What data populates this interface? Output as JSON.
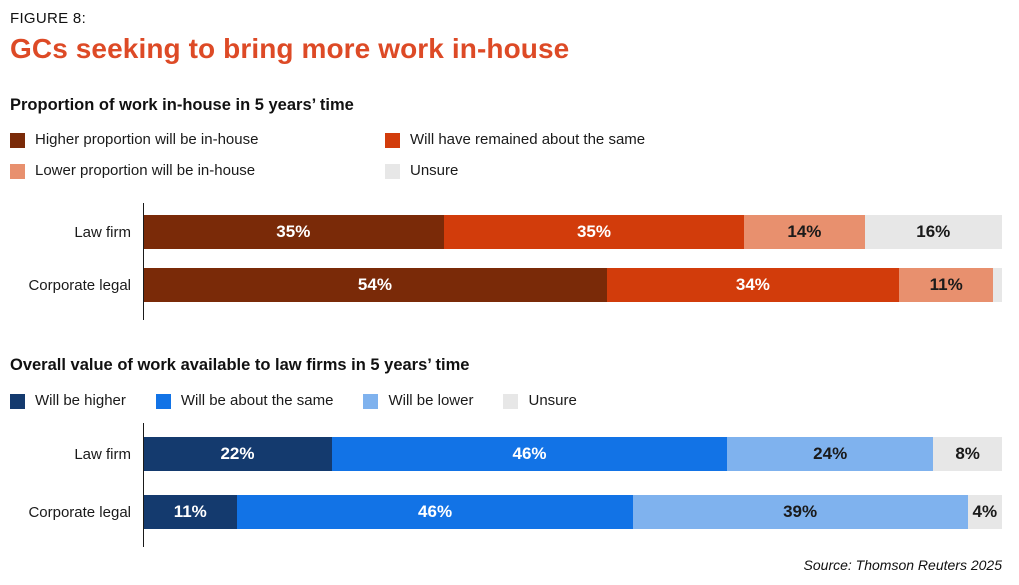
{
  "figure": {
    "label": "FIGURE 8:",
    "title": "GCs seeking to bring more work in-house",
    "source": "Source: Thomson Reuters 2025"
  },
  "colors": {
    "title": "#DD4A26",
    "text": "#1A1A1A",
    "axis": "#1A1A1A"
  },
  "chart_data": [
    {
      "type": "bar",
      "stacked": true,
      "orientation": "horizontal",
      "title": "Proportion of work in-house in 5 years’ time",
      "legend_layout": "grid-2col",
      "legend_position": "top",
      "grid": false,
      "xlim": [
        0,
        100
      ],
      "legend": [
        {
          "label": "Higher proportion will be in-house",
          "color": "#7A2A08"
        },
        {
          "label": "Will have remained about the same",
          "color": "#D23C0B"
        },
        {
          "label": "Lower proportion will be in-house",
          "color": "#E8906E"
        },
        {
          "label": "Unsure",
          "color": "#E7E7E7"
        }
      ],
      "categories": [
        "Law firm",
        "Corporate legal"
      ],
      "series": [
        {
          "name": "Higher proportion will be in-house",
          "values": [
            35,
            54
          ],
          "label_color": "#FFFFFF"
        },
        {
          "name": "Will have remained about the same",
          "values": [
            35,
            34
          ],
          "label_color": "#FFFFFF"
        },
        {
          "name": "Lower proportion will be in-house",
          "values": [
            14,
            11
          ],
          "label_color": "#1A1A1A"
        },
        {
          "name": "Unsure",
          "values": [
            16,
            1
          ],
          "label_color": "#1A1A1A"
        }
      ],
      "value_labels": [
        [
          "35%",
          "35%",
          "14%",
          "16%"
        ],
        [
          "54%",
          "34%",
          "11%",
          ""
        ]
      ]
    },
    {
      "type": "bar",
      "stacked": true,
      "orientation": "horizontal",
      "title": "Overall value of work available to law firms in 5 years’ time",
      "legend_layout": "row",
      "legend_position": "top",
      "grid": false,
      "xlim": [
        0,
        100
      ],
      "legend": [
        {
          "label": "Will be higher",
          "color": "#143A6E"
        },
        {
          "label": "Will be about the same",
          "color": "#1273E6"
        },
        {
          "label": "Will be lower",
          "color": "#7FB2EE"
        },
        {
          "label": "Unsure",
          "color": "#E7E7E7"
        }
      ],
      "categories": [
        "Law firm",
        "Corporate legal"
      ],
      "series": [
        {
          "name": "Will be higher",
          "values": [
            22,
            11
          ],
          "label_color": "#FFFFFF"
        },
        {
          "name": "Will be about the same",
          "values": [
            46,
            46
          ],
          "label_color": "#FFFFFF"
        },
        {
          "name": "Will be lower",
          "values": [
            24,
            39
          ],
          "label_color": "#1A1A1A"
        },
        {
          "name": "Unsure",
          "values": [
            8,
            4
          ],
          "label_color": "#1A1A1A"
        }
      ],
      "value_labels": [
        [
          "22%",
          "46%",
          "24%",
          "8%"
        ],
        [
          "11%",
          "46%",
          "39%",
          "4%"
        ]
      ]
    }
  ]
}
